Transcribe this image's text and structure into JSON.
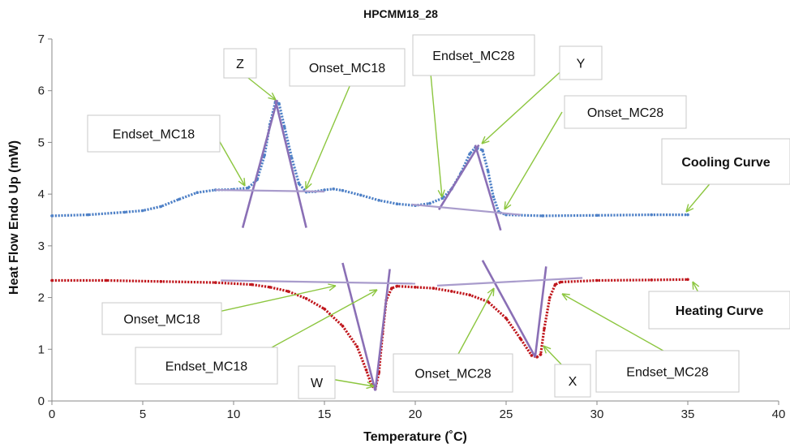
{
  "chart_data": {
    "type": "line",
    "title": "HPCMM18_28",
    "xlabel": "Temperature (˚C)",
    "ylabel": "Heat Flow Endo Up (mW)",
    "xlim": [
      0,
      40
    ],
    "ylim": [
      0,
      7
    ],
    "xticks": [
      0,
      5,
      10,
      15,
      20,
      25,
      30,
      35,
      40
    ],
    "yticks": [
      0,
      1,
      2,
      3,
      4,
      5,
      6,
      7
    ],
    "grid": false,
    "series": [
      {
        "name": "Cooling Curve",
        "color": "#4f81c7",
        "points": [
          [
            0,
            3.58
          ],
          [
            2,
            3.6
          ],
          [
            4,
            3.65
          ],
          [
            5,
            3.68
          ],
          [
            6,
            3.76
          ],
          [
            7,
            3.9
          ],
          [
            8,
            4.03
          ],
          [
            9,
            4.08
          ],
          [
            10,
            4.09
          ],
          [
            10.8,
            4.12
          ],
          [
            11.3,
            4.28
          ],
          [
            11.7,
            4.75
          ],
          [
            12.0,
            5.35
          ],
          [
            12.3,
            5.78
          ],
          [
            12.5,
            5.75
          ],
          [
            12.8,
            5.3
          ],
          [
            13.2,
            4.7
          ],
          [
            13.6,
            4.2
          ],
          [
            14.0,
            4.04
          ],
          [
            14.5,
            4.05
          ],
          [
            15.0,
            4.08
          ],
          [
            15.5,
            4.1
          ],
          [
            16.0,
            4.07
          ],
          [
            17.0,
            3.98
          ],
          [
            18.0,
            3.88
          ],
          [
            19.0,
            3.81
          ],
          [
            20.0,
            3.78
          ],
          [
            20.8,
            3.82
          ],
          [
            21.5,
            3.92
          ],
          [
            22.0,
            4.1
          ],
          [
            22.5,
            4.4
          ],
          [
            23.0,
            4.78
          ],
          [
            23.3,
            4.9
          ],
          [
            23.7,
            4.85
          ],
          [
            24.0,
            4.45
          ],
          [
            24.3,
            3.95
          ],
          [
            24.6,
            3.65
          ],
          [
            25.0,
            3.6
          ],
          [
            27,
            3.58
          ],
          [
            30,
            3.59
          ],
          [
            33,
            3.6
          ],
          [
            35,
            3.6
          ]
        ]
      },
      {
        "name": "Heating Curve",
        "color": "#c0171d",
        "points": [
          [
            0,
            2.33
          ],
          [
            3,
            2.33
          ],
          [
            6,
            2.31
          ],
          [
            9,
            2.29
          ],
          [
            11,
            2.25
          ],
          [
            12,
            2.2
          ],
          [
            13,
            2.12
          ],
          [
            14,
            1.98
          ],
          [
            15,
            1.78
          ],
          [
            16,
            1.45
          ],
          [
            16.8,
            1.05
          ],
          [
            17.3,
            0.6
          ],
          [
            17.6,
            0.3
          ],
          [
            17.8,
            0.23
          ],
          [
            18.0,
            0.55
          ],
          [
            18.2,
            1.3
          ],
          [
            18.4,
            1.95
          ],
          [
            18.7,
            2.18
          ],
          [
            19.0,
            2.22
          ],
          [
            20,
            2.2
          ],
          [
            21,
            2.18
          ],
          [
            22,
            2.12
          ],
          [
            23,
            2.05
          ],
          [
            24,
            1.92
          ],
          [
            25,
            1.6
          ],
          [
            25.8,
            1.2
          ],
          [
            26.4,
            0.88
          ],
          [
            26.7,
            0.85
          ],
          [
            26.9,
            0.9
          ],
          [
            27.1,
            1.4
          ],
          [
            27.4,
            2.0
          ],
          [
            27.7,
            2.25
          ],
          [
            28.0,
            2.3
          ],
          [
            30,
            2.33
          ],
          [
            33,
            2.34
          ],
          [
            35,
            2.35
          ]
        ]
      }
    ],
    "tangent_lines": [
      [
        [
          10.5,
          3.35
        ],
        [
          12.4,
          5.82
        ]
      ],
      [
        [
          12.3,
          5.82
        ],
        [
          14.0,
          3.35
        ]
      ],
      [
        [
          9.0,
          4.08
        ],
        [
          15.0,
          4.05
        ]
      ],
      [
        [
          21.3,
          3.7
        ],
        [
          23.5,
          4.95
        ]
      ],
      [
        [
          23.3,
          4.95
        ],
        [
          24.7,
          3.3
        ]
      ],
      [
        [
          19.8,
          3.8
        ],
        [
          25.8,
          3.6
        ]
      ],
      [
        [
          16.0,
          2.67
        ],
        [
          17.8,
          0.2
        ]
      ],
      [
        [
          17.8,
          0.2
        ],
        [
          18.6,
          2.55
        ]
      ],
      [
        [
          9.3,
          2.33
        ],
        [
          20.0,
          2.27
        ]
      ],
      [
        [
          23.7,
          2.72
        ],
        [
          26.6,
          0.85
        ]
      ],
      [
        [
          26.6,
          0.85
        ],
        [
          27.2,
          2.6
        ]
      ],
      [
        [
          21.2,
          2.23
        ],
        [
          29.2,
          2.38
        ]
      ]
    ],
    "annotations": [
      {
        "label": "Z",
        "bold": false
      },
      {
        "label": "Onset_MC18",
        "bold": false
      },
      {
        "label": "Endset_MC28",
        "bold": false
      },
      {
        "label": "Y",
        "bold": false
      },
      {
        "label": "Endset_MC18",
        "bold": false
      },
      {
        "label": "Onset_MC28",
        "bold": false
      },
      {
        "label": "Cooling Curve",
        "bold": true
      },
      {
        "label": "Onset_MC18",
        "bold": false
      },
      {
        "label": "Heating Curve",
        "bold": true
      },
      {
        "label": "Endset_MC18",
        "bold": false
      },
      {
        "label": "W",
        "bold": false
      },
      {
        "label": "Onset_MC28",
        "bold": false
      },
      {
        "label": "X",
        "bold": false
      },
      {
        "label": "Endset_MC28",
        "bold": false
      }
    ]
  }
}
